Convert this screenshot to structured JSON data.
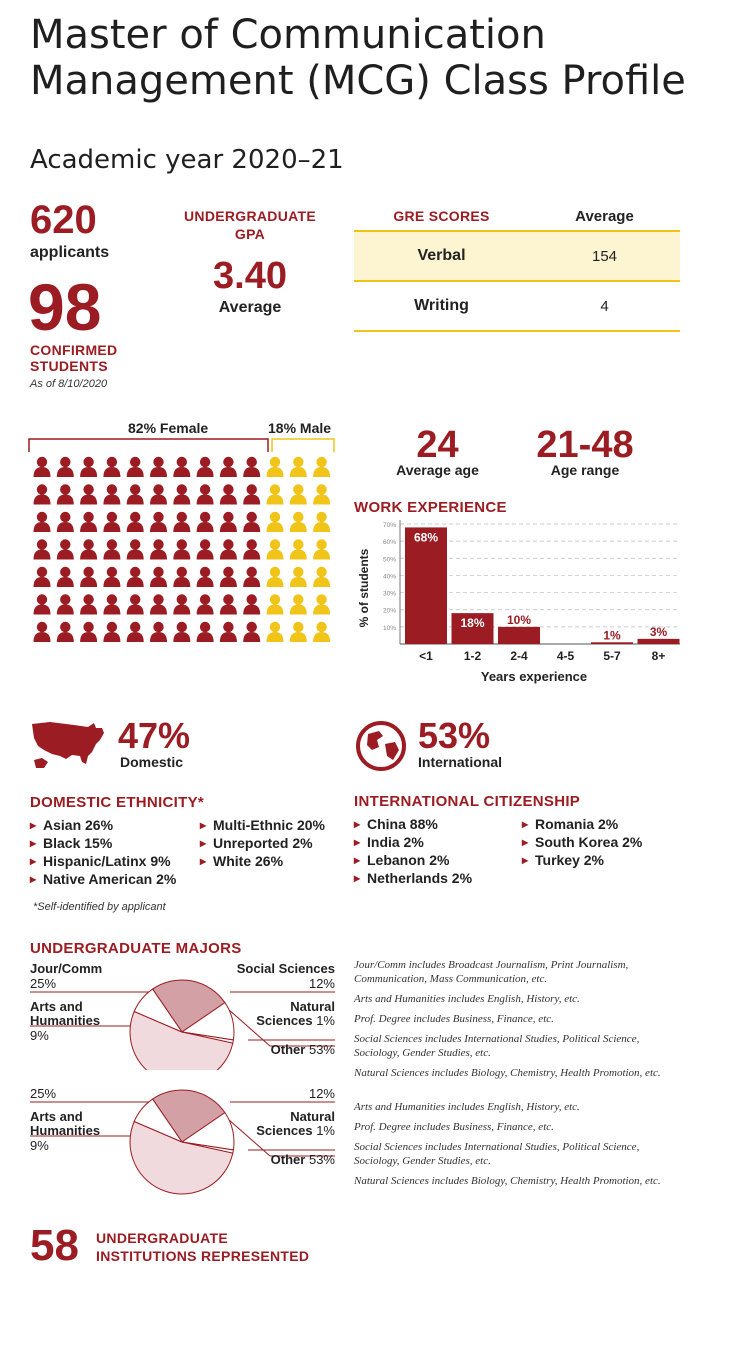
{
  "page": {
    "title_line1": "Master of Communication",
    "title_line2": "Management (MCG) Class Profile",
    "subtitle": "Academic year 2020–21"
  },
  "stats": {
    "applicants_value": "620",
    "applicants_label": "applicants",
    "confirmed_value": "98",
    "confirmed_label_1": "CONFIRMED",
    "confirmed_label_2": "STUDENTS",
    "as_of": "As of 8/10/2020",
    "gpa_title_1": "UNDERGRADUATE",
    "gpa_title_2": "GPA",
    "gpa_value": "3.40",
    "gpa_label": "Average"
  },
  "gre": {
    "header_label": "GRE SCORES",
    "header_avg": "Average",
    "rows": [
      {
        "name": "Verbal",
        "value": "154"
      },
      {
        "name": "Writing",
        "value": "4"
      }
    ]
  },
  "gender": {
    "female_label": "82% Female",
    "male_label": "18% Male",
    "female_pct": 82,
    "male_pct": 18,
    "female_color": "#9b1c22",
    "male_color": "#f0c419"
  },
  "age": {
    "average_value": "24",
    "average_label": "Average age",
    "range_value": "21-48",
    "range_label": "Age range"
  },
  "work_experience": {
    "title": "WORK EXPERIENCE",
    "chart_data": {
      "type": "bar",
      "categories": [
        "<1",
        "1-2",
        "2-4",
        "4-5",
        "5-7",
        "8+"
      ],
      "values": [
        68,
        18,
        10,
        0,
        1,
        3
      ],
      "value_labels": [
        "68%",
        "18%",
        "10%",
        "",
        "1%",
        "3%"
      ],
      "ylabel": "% of students",
      "xlabel": "Years experience",
      "ylim": [
        0,
        70
      ],
      "y_ticks": [
        "70%",
        "60%",
        "50%",
        "40%",
        "30%",
        "20%",
        "10%"
      ],
      "grid": true,
      "color": "#9b1c22"
    }
  },
  "domestic": {
    "value": "47%",
    "label": "Domestic",
    "icon": "usa-map-icon"
  },
  "international": {
    "value": "53%",
    "label": "International",
    "icon": "globe-icon"
  },
  "ethnicity": {
    "title": "DOMESTIC ETHNICITY*",
    "col1": [
      "Asian 26%",
      "Black 15%",
      "Hispanic/Latinx 9%",
      "Native American 2%"
    ],
    "col2": [
      "Multi-Ethnic 20%",
      "Unreported 2%",
      "White 26%"
    ],
    "footnote": "*Self-identified by applicant"
  },
  "citizenship": {
    "title": "INTERNATIONAL CITIZENSHIP",
    "col1": [
      "China 88%",
      "India 2%",
      "Lebanon 2%",
      "Netherlands 2%"
    ],
    "col2": [
      "Romania 2%",
      "South Korea 2%",
      "Turkey 2%"
    ]
  },
  "majors": {
    "title": "UNDERGRADUATE MAJORS",
    "chart_data": {
      "type": "pie",
      "categories": [
        "Jour/Comm",
        "Social Sciences",
        "Natural Sciences",
        "Other",
        "Arts and Humanities"
      ],
      "values": [
        25,
        12,
        1,
        53,
        9
      ]
    },
    "labels": {
      "jour_name": "Jour/Comm",
      "jour_pct": "25%",
      "social_name": "Social Sciences",
      "social_pct": "12%",
      "arts_name_1": "Arts and",
      "arts_name_2": "Humanities",
      "arts_pct": "9%",
      "natural_name_1": "Natural",
      "natural_name_2": "Sciences",
      "natural_pct": "1%",
      "other_name": "Other",
      "other_pct": "53%"
    },
    "notes": [
      "Jour/Comm includes Broadcast Journalism, Print Journalism, Communication, Mass Communication, etc.",
      "Arts and Humanities includes English, History, etc.",
      "Prof. Degree includes Business, Finance, etc.",
      "Social Sciences includes International Studies, Political Science, Sociology, Gender Studies, etc.",
      "Natural Sciences includes Biology, Chemistry, Health Promotion, etc."
    ],
    "colors": {
      "jour": "#d3a0a6",
      "social": "#ffffff",
      "natural": "#ffffff",
      "other": "#f1dadd",
      "arts": "#ffffff",
      "stroke": "#9b1c22"
    }
  },
  "institutions": {
    "value": "58",
    "label_1": "UNDERGRADUATE",
    "label_2": "INSTITUTIONS REPRESENTED"
  }
}
